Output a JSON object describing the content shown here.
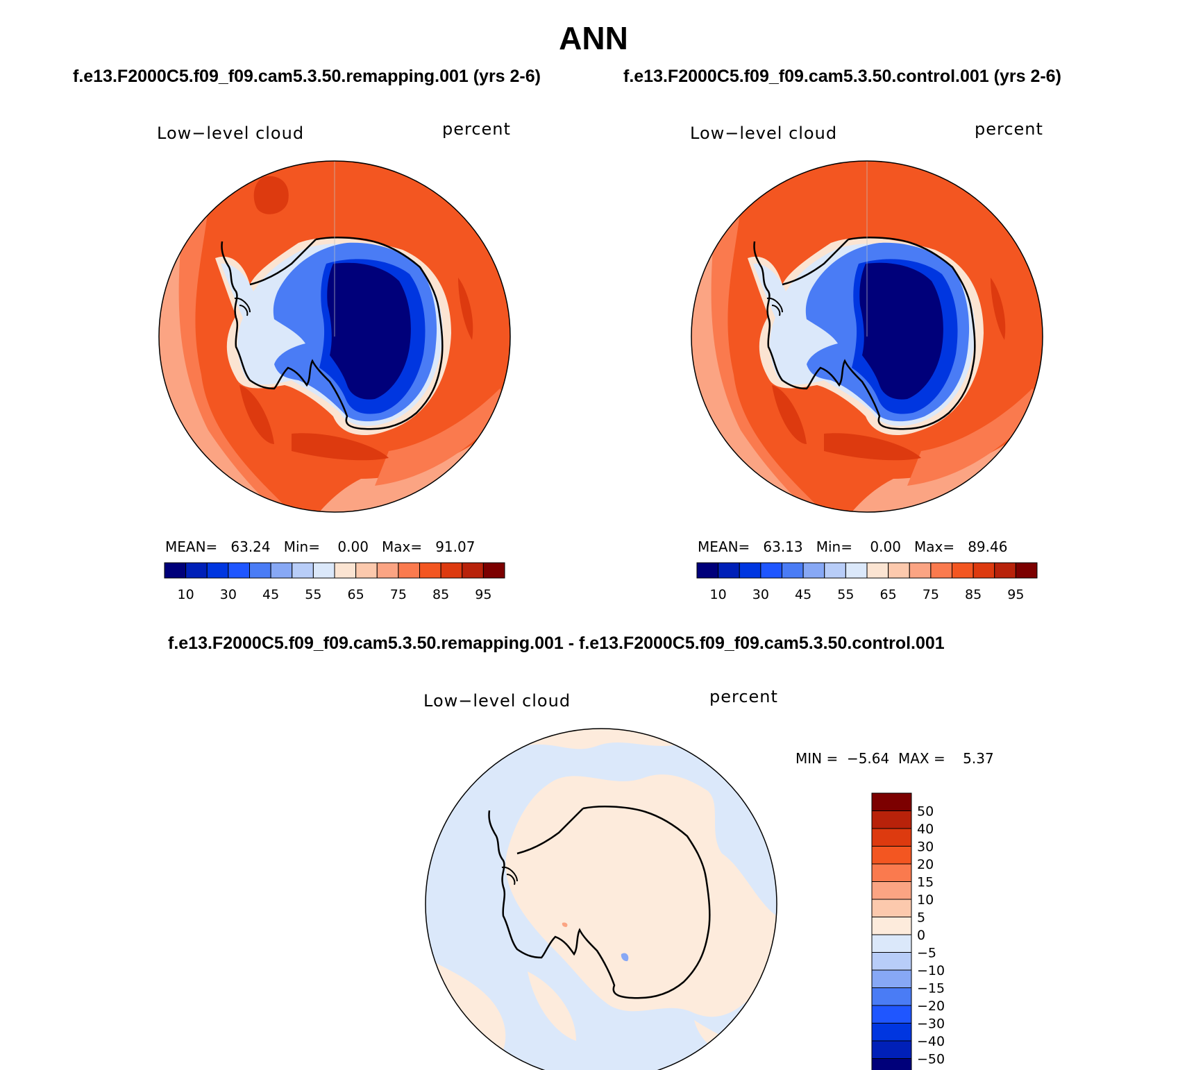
{
  "title": "ANN",
  "panels": {
    "test": {
      "case": "f.e13.F2000C5.f09_f09.cam5.3.50.remapping.001 (yrs 2-6)",
      "variable": "Low−level cloud",
      "units": "percent",
      "mean_label": "MEAN=",
      "mean": "63.24",
      "min_label": "Min=",
      "min": "0.00",
      "max_label": "Max=",
      "max": "91.07"
    },
    "control": {
      "case": "f.e13.F2000C5.f09_f09.cam5.3.50.control.001 (yrs 2-6)",
      "variable": "Low−level cloud",
      "units": "percent",
      "mean_label": "MEAN=",
      "mean": "63.13",
      "min_label": "Min=",
      "min": "0.00",
      "max_label": "Max=",
      "max": "89.46"
    },
    "diff": {
      "case": "f.e13.F2000C5.f09_f09.cam5.3.50.remapping.001 - f.e13.F2000C5.f09_f09.cam5.3.50.control.001",
      "variable": "Low−level cloud",
      "units": "percent",
      "min_label": "MIN =",
      "min": "−5.64",
      "max_label": "MAX =",
      "max": "5.37"
    }
  },
  "chart_data": [
    {
      "type": "heatmap",
      "projection": "polar-stereographic (South Pole)",
      "title": "f.e13.F2000C5.f09_f09.cam5.3.50.remapping.001 (yrs 2-6)",
      "field": "Low-level cloud",
      "units": "percent",
      "stats": {
        "mean": 63.24,
        "min": 0.0,
        "max": 91.07
      },
      "colorbar": {
        "orientation": "horizontal",
        "levels": [
          10,
          20,
          30,
          40,
          45,
          50,
          55,
          60,
          65,
          70,
          75,
          80,
          85,
          90,
          95
        ],
        "tick_labels": [
          "10",
          "30",
          "45",
          "55",
          "65",
          "75",
          "85",
          "95"
        ],
        "colors": [
          "#00007a",
          "#0020b8",
          "#0036e0",
          "#1f56ff",
          "#4a7cf5",
          "#87a8f5",
          "#b8cdf8",
          "#dbe8fa",
          "#fbe4d2",
          "#fcc9ad",
          "#fba483",
          "#fa7a4e",
          "#f35621",
          "#dd3a0f",
          "#b8220a",
          "#7c0000"
        ]
      }
    },
    {
      "type": "heatmap",
      "projection": "polar-stereographic (South Pole)",
      "title": "f.e13.F2000C5.f09_f09.cam5.3.50.control.001 (yrs 2-6)",
      "field": "Low-level cloud",
      "units": "percent",
      "stats": {
        "mean": 63.13,
        "min": 0.0,
        "max": 89.46
      },
      "colorbar": {
        "orientation": "horizontal",
        "levels": [
          10,
          20,
          30,
          40,
          45,
          50,
          55,
          60,
          65,
          70,
          75,
          80,
          85,
          90,
          95
        ],
        "tick_labels": [
          "10",
          "30",
          "45",
          "55",
          "65",
          "75",
          "85",
          "95"
        ],
        "colors": [
          "#00007a",
          "#0020b8",
          "#0036e0",
          "#1f56ff",
          "#4a7cf5",
          "#87a8f5",
          "#b8cdf8",
          "#dbe8fa",
          "#fbe4d2",
          "#fcc9ad",
          "#fba483",
          "#fa7a4e",
          "#f35621",
          "#dd3a0f",
          "#b8220a",
          "#7c0000"
        ]
      }
    },
    {
      "type": "heatmap",
      "projection": "polar-stereographic (South Pole)",
      "title": "f.e13.F2000C5.f09_f09.cam5.3.50.remapping.001 - f.e13.F2000C5.f09_f09.cam5.3.50.control.001",
      "field": "Low-level cloud",
      "units": "percent",
      "stats": {
        "min": -5.64,
        "max": 5.37
      },
      "colorbar": {
        "orientation": "vertical",
        "levels": [
          -50,
          -40,
          -30,
          -20,
          -15,
          -10,
          -5,
          0,
          5,
          10,
          15,
          20,
          30,
          40,
          50
        ],
        "tick_labels": [
          "50",
          "40",
          "30",
          "20",
          "15",
          "10",
          "5",
          "0",
          "−5",
          "−10",
          "−15",
          "−20",
          "−30",
          "−40",
          "−50"
        ],
        "colors": [
          "#00007a",
          "#0020b8",
          "#0036e0",
          "#1f56ff",
          "#4a7cf5",
          "#87a8f5",
          "#b8cdf8",
          "#dbe8fa",
          "#fdebdc",
          "#fcc9ad",
          "#fba483",
          "#fa7a4e",
          "#f35621",
          "#dd3a0f",
          "#b8220a",
          "#7c0000"
        ]
      }
    }
  ]
}
